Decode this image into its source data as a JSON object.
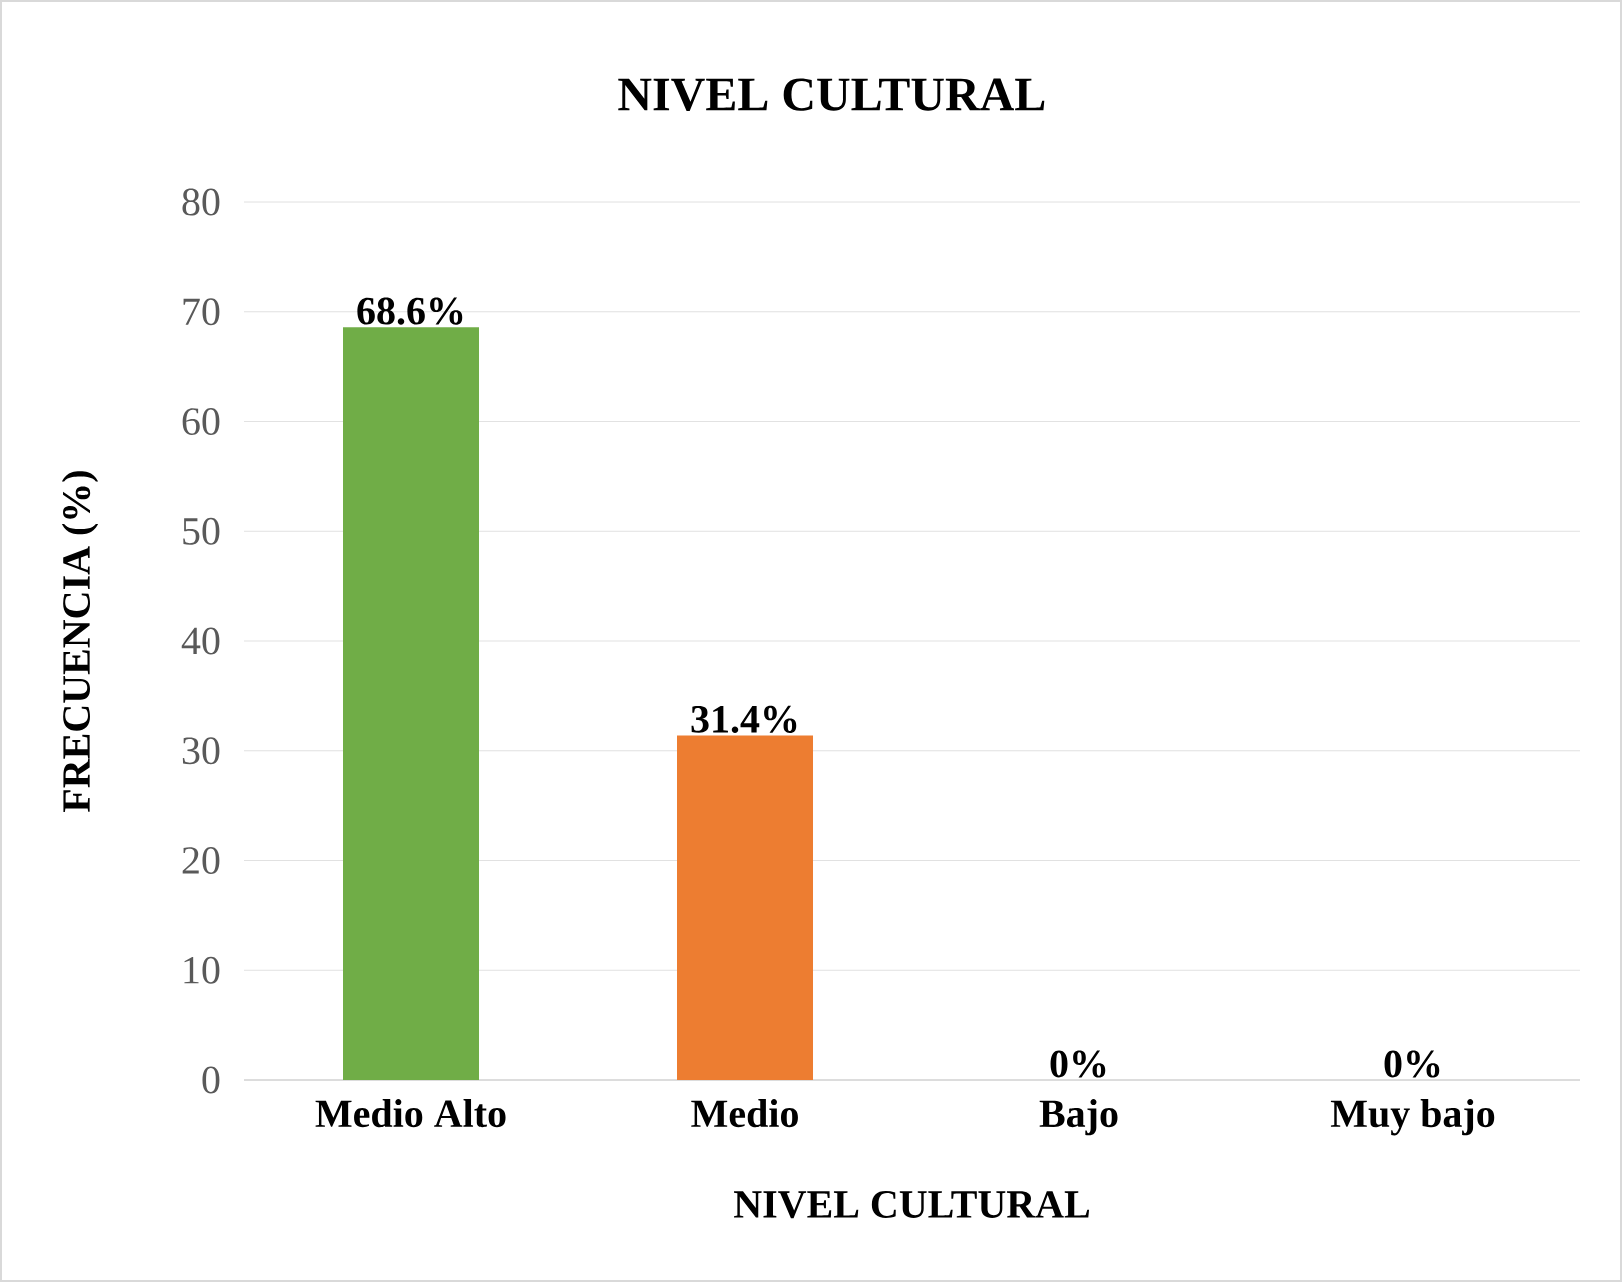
{
  "chart_data": {
    "type": "bar",
    "title": "NIVEL CULTURAL",
    "xlabel": "NIVEL CULTURAL",
    "ylabel": "FRECUENCIA (%)",
    "categories": [
      "Medio Alto",
      "Medio",
      "Bajo",
      "Muy bajo"
    ],
    "values": [
      68.6,
      31.4,
      0,
      0
    ],
    "colors": [
      "#70ad47",
      "#ed7d31",
      "#a5a5a5",
      "#ffc000"
    ],
    "value_labels": [
      "68.6%",
      "31.4%",
      "0%",
      "0%"
    ],
    "ylim": [
      0,
      80
    ],
    "yticks": [
      0,
      10,
      20,
      30,
      40,
      50,
      60,
      70,
      80
    ],
    "grid": "y"
  }
}
